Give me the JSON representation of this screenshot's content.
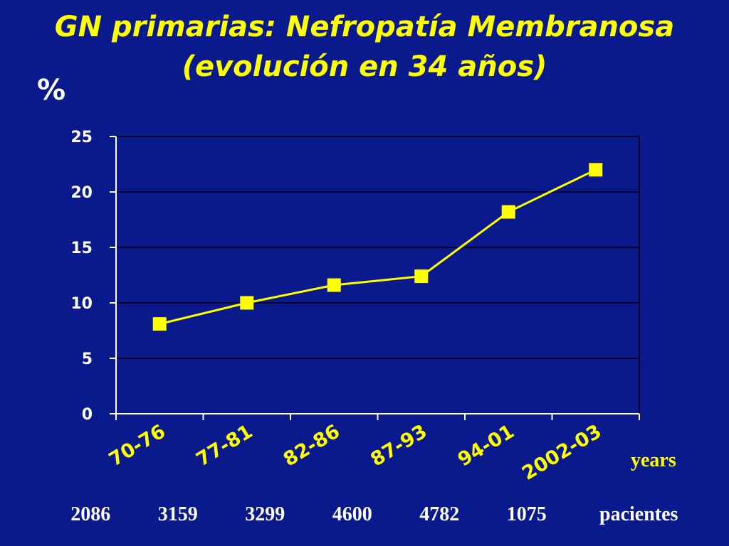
{
  "title": {
    "line1": "GN primarias: Nefropatía Membranosa",
    "line2": "(evolución en 34 años)"
  },
  "y_unit": "%",
  "x_unit": "years",
  "patients_label": "pacientes",
  "patient_counts": [
    "2086",
    "3159",
    "3299",
    "4600",
    "4782",
    "1075"
  ],
  "colors": {
    "background": "#0a1a8c",
    "title": "#ffff00",
    "series": "#ffff00",
    "axis": "#ffffff",
    "grid": "#000000"
  },
  "chart_data": {
    "type": "line",
    "categories": [
      "70-76",
      "77-81",
      "82-86",
      "87-93",
      "94-01",
      "2002-03"
    ],
    "series": [
      {
        "values": [
          8.1,
          10.0,
          11.6,
          12.4,
          18.2,
          22.0
        ]
      }
    ],
    "ylim": [
      0,
      25
    ],
    "yticks": [
      "0",
      "5",
      "10",
      "15",
      "20",
      "25"
    ],
    "grid": true,
    "marker": "square"
  }
}
